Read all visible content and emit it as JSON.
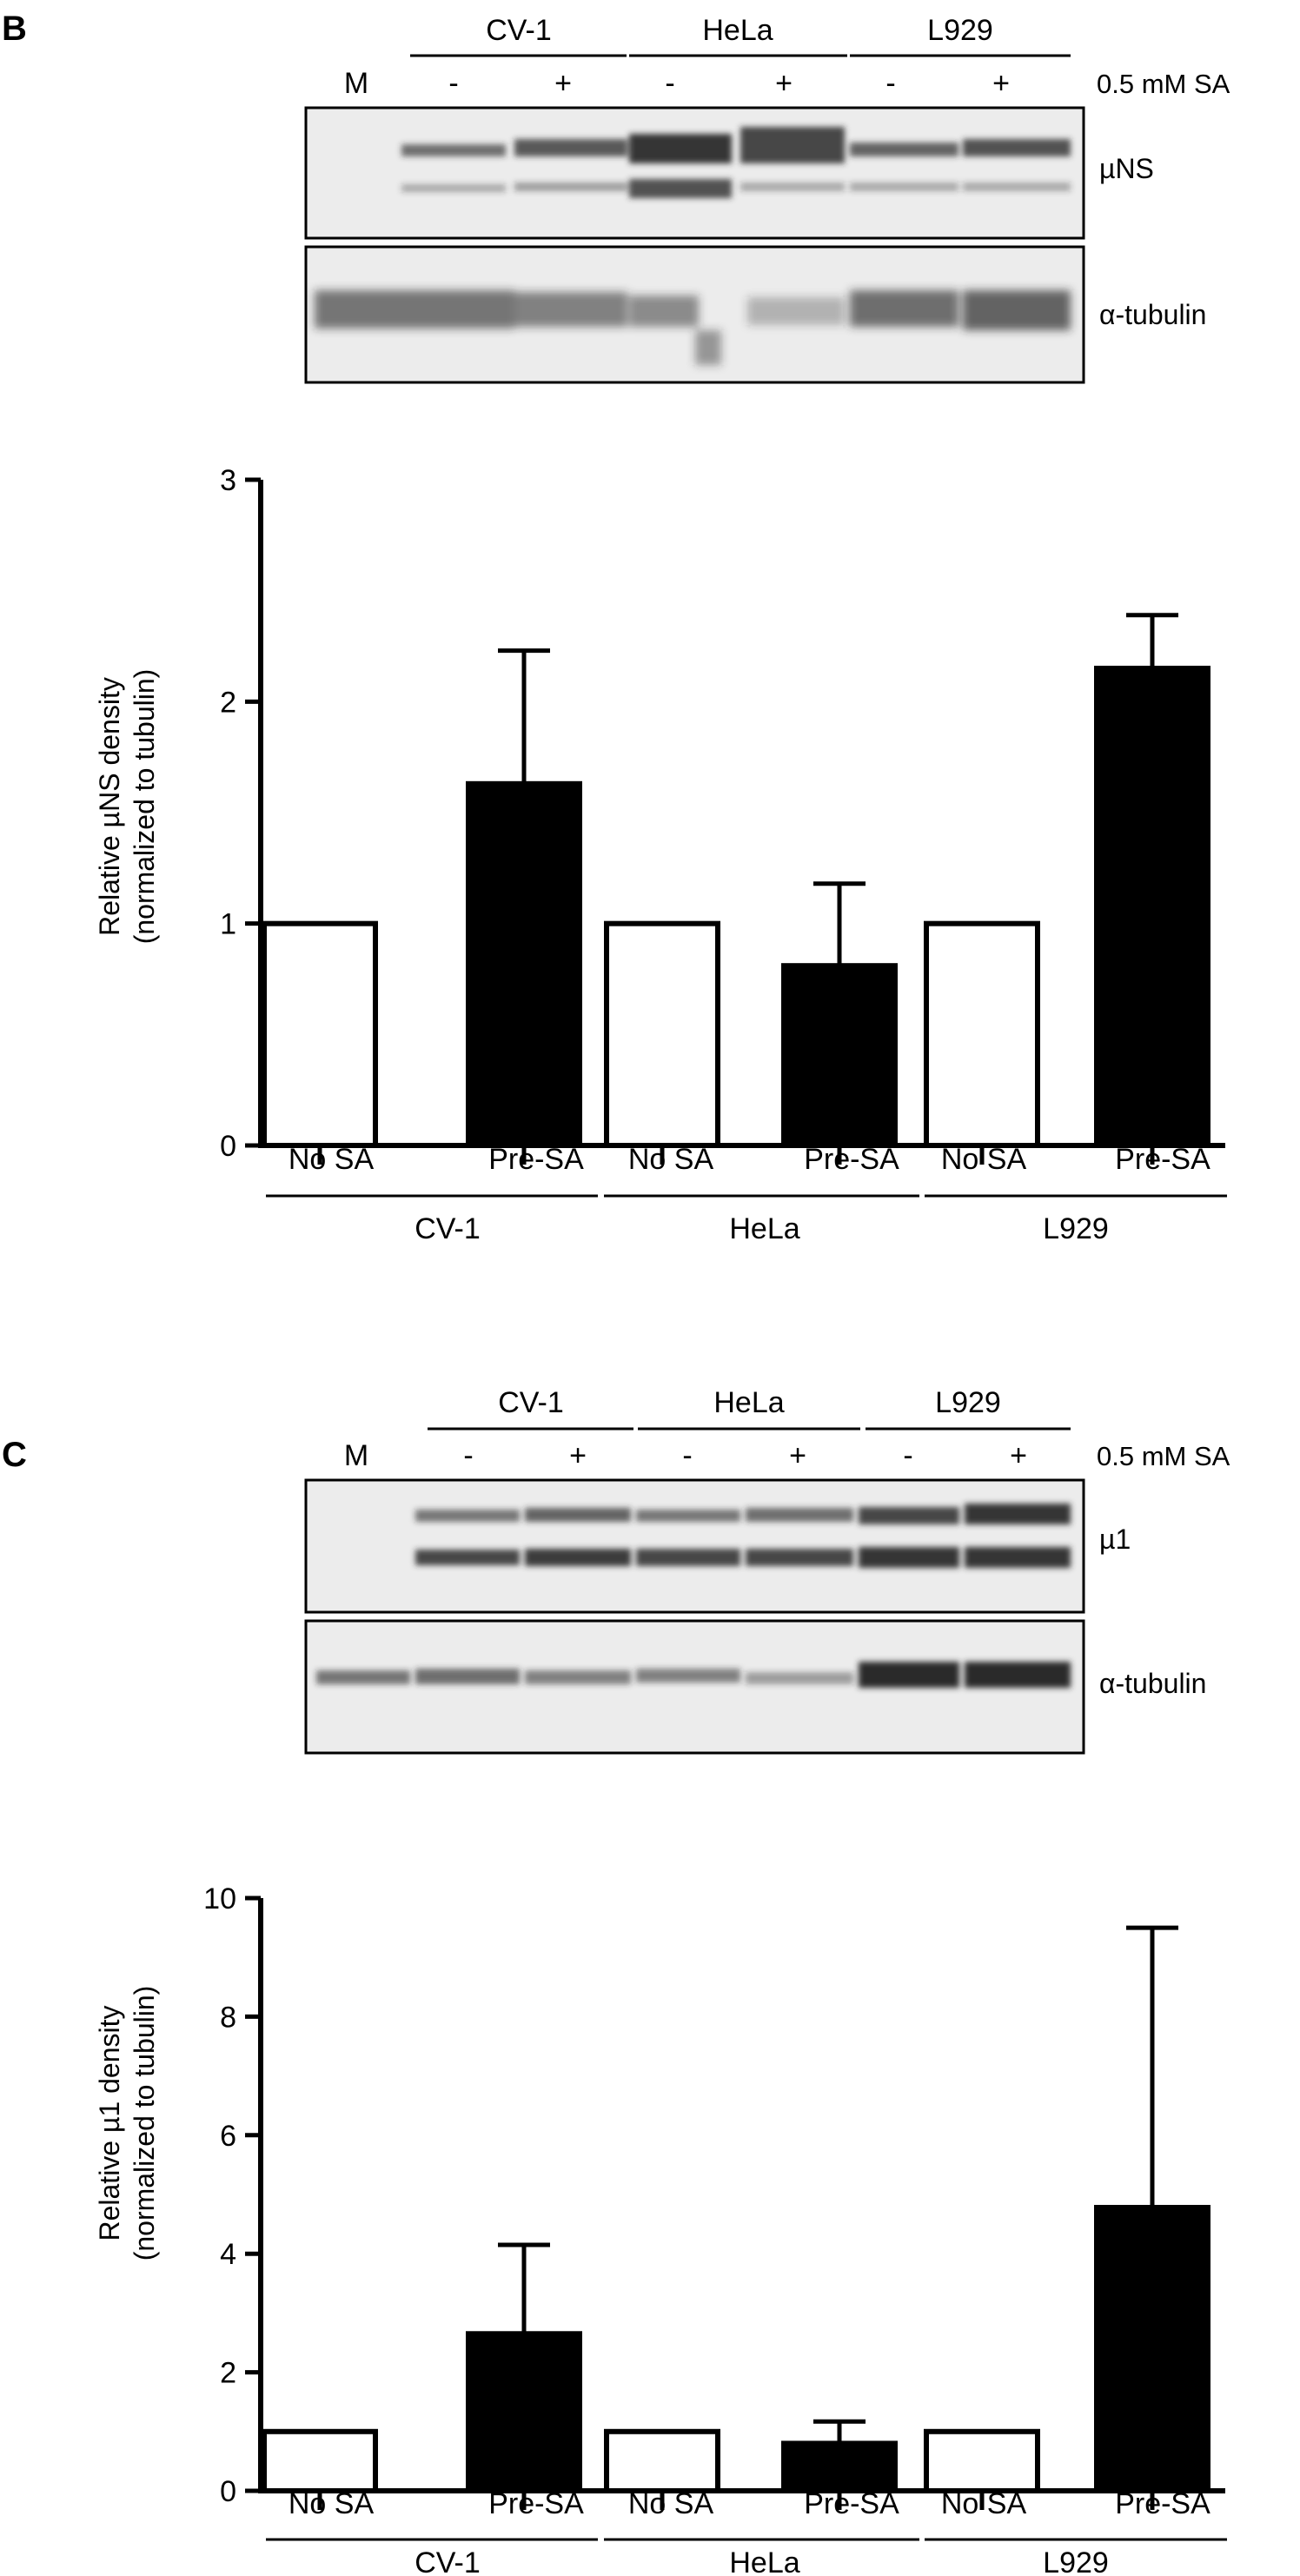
{
  "panels": [
    {
      "letter": "B",
      "marker_lane": "M",
      "treatment_label": "0.5 mM SA",
      "cell_groups": [
        "CV-1",
        "HeLa",
        "L929"
      ],
      "lane_signs": [
        "-",
        "+",
        "-",
        "+",
        "-",
        "+"
      ],
      "blot_labels": [
        "µNS",
        "α-tubulin"
      ]
    },
    {
      "letter": "C",
      "marker_lane": "M",
      "treatment_label": "0.5 mM SA",
      "cell_groups": [
        "CV-1",
        "HeLa",
        "L929"
      ],
      "lane_signs": [
        "-",
        "+",
        "-",
        "+",
        "-",
        "+"
      ],
      "blot_labels": [
        "µ1",
        "α-tubulin"
      ]
    }
  ],
  "chart_data": [
    {
      "type": "bar",
      "ylabel_lines": [
        "Relative µNS density",
        "(normalized to tubulin)"
      ],
      "categories": [
        "No SA",
        "Pre-SA",
        "No SA",
        "Pre-SA",
        "No SA",
        "Pre-SA"
      ],
      "groups": [
        "CV-1",
        "HeLa",
        "L929"
      ],
      "values": [
        1.0,
        1.63,
        1.0,
        0.81,
        1.0,
        2.15
      ],
      "errors": [
        0,
        0.6,
        0,
        0.37,
        0,
        0.24
      ],
      "fills": [
        "#ffffff",
        "#000000",
        "#ffffff",
        "#000000",
        "#ffffff",
        "#000000"
      ],
      "ylim": [
        0,
        3
      ],
      "yticks": [
        "0",
        "1",
        "2",
        "3"
      ]
    },
    {
      "type": "bar",
      "ylabel_lines": [
        "Relative µ1 density",
        "(normalized to tubulin)"
      ],
      "categories": [
        "No SA",
        "Pre-SA",
        "No SA",
        "Pre-SA",
        "No SA",
        "Pre-SA"
      ],
      "groups": [
        "CV-1",
        "HeLa",
        "L929"
      ],
      "values": [
        1.0,
        2.65,
        1.0,
        0.8,
        1.0,
        4.78
      ],
      "errors": [
        0,
        1.5,
        0,
        0.37,
        0,
        4.72
      ],
      "fills": [
        "#ffffff",
        "#000000",
        "#ffffff",
        "#000000",
        "#ffffff",
        "#000000"
      ],
      "ylim": [
        0,
        10
      ],
      "yticks": [
        "0",
        "2",
        "4",
        "6",
        "8",
        "10"
      ]
    }
  ]
}
